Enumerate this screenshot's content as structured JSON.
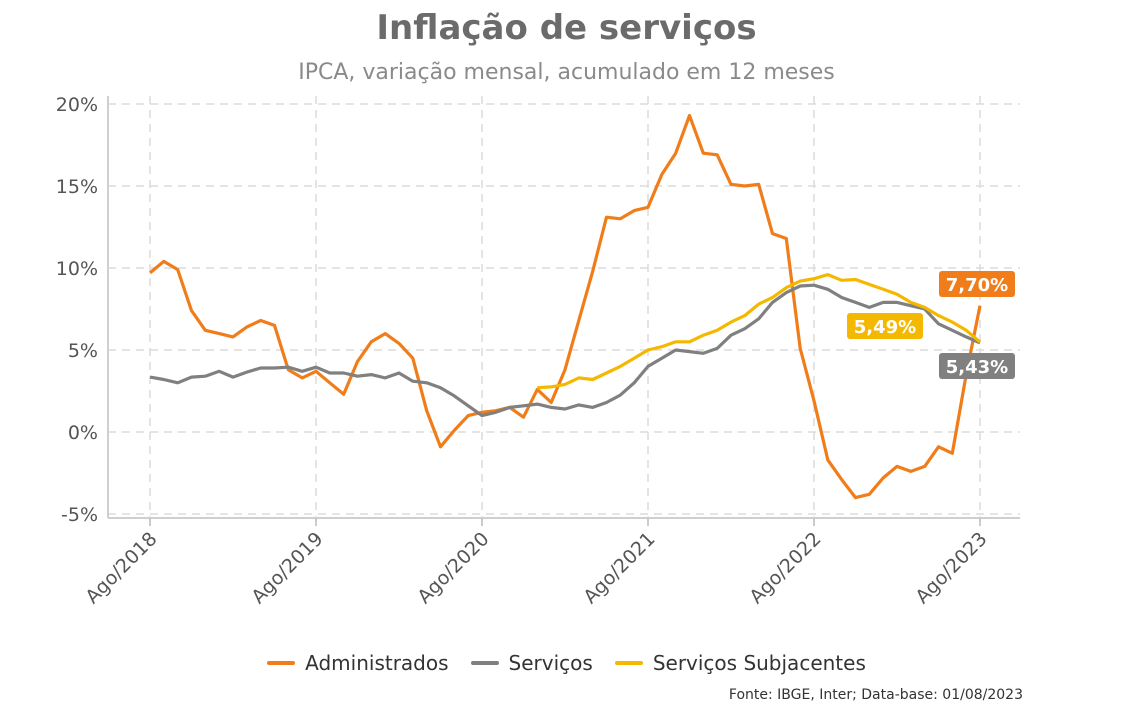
{
  "chart_data": {
    "type": "line",
    "title": "Inflação de serviços",
    "subtitle": "IPCA, variação mensal, acumulado em 12 meses",
    "xlabel": "",
    "ylabel": "",
    "x_start": "2018-08",
    "x_end": "2023-08",
    "frequency": "monthly",
    "x_ticks": [
      "Ago/2018",
      "Ago/2019",
      "Ago/2020",
      "Ago/2021",
      "Ago/2022",
      "Ago/2023"
    ],
    "y_ticks": [
      "-5%",
      "0%",
      "5%",
      "10%",
      "15%",
      "20%"
    ],
    "ylim": [
      -5,
      20
    ],
    "grid": true,
    "legend_position": "bottom",
    "series": [
      {
        "name": "Administrados",
        "color": "#F07D1A",
        "start": "2018-08",
        "end_label": "7,70%",
        "values": [
          9.7,
          10.4,
          9.9,
          7.4,
          6.2,
          6.0,
          5.8,
          6.4,
          6.8,
          6.5,
          3.8,
          3.3,
          3.7,
          3.0,
          2.3,
          4.3,
          5.5,
          6.0,
          5.4,
          4.5,
          1.3,
          -0.9,
          0.1,
          1.0,
          1.2,
          1.3,
          1.5,
          0.9,
          2.6,
          1.8,
          3.8,
          6.8,
          9.8,
          13.1,
          13.0,
          13.5,
          13.7,
          15.7,
          17.0,
          19.3,
          17.0,
          16.9,
          15.1,
          15.0,
          15.1,
          12.1,
          11.8,
          5.1,
          1.9,
          -1.7,
          -2.9,
          -4.0,
          -3.8,
          -2.8,
          -2.1,
          -2.4,
          -2.1,
          -0.9,
          -1.3,
          3.5,
          7.7
        ]
      },
      {
        "name": "Serviços",
        "color": "#808080",
        "start": "2018-08",
        "end_label": "5,43%",
        "values": [
          3.35,
          3.2,
          3.0,
          3.35,
          3.4,
          3.7,
          3.35,
          3.65,
          3.9,
          3.9,
          3.95,
          3.7,
          3.95,
          3.6,
          3.6,
          3.4,
          3.5,
          3.3,
          3.6,
          3.1,
          3.0,
          2.7,
          2.2,
          1.6,
          1.0,
          1.2,
          1.5,
          1.6,
          1.7,
          1.5,
          1.4,
          1.65,
          1.5,
          1.8,
          2.25,
          3.0,
          4.0,
          4.5,
          5.0,
          4.9,
          4.8,
          5.1,
          5.9,
          6.3,
          6.9,
          7.9,
          8.5,
          8.9,
          8.95,
          8.7,
          8.2,
          7.9,
          7.6,
          7.9,
          7.9,
          7.7,
          7.5,
          6.6,
          6.2,
          5.8,
          5.43
        ]
      },
      {
        "name": "Serviços Subjacentes",
        "color": "#F5B800",
        "start": "2020-12",
        "end_label": "5,49%",
        "values": [
          2.7,
          2.75,
          2.9,
          3.3,
          3.2,
          3.6,
          4.0,
          4.5,
          5.0,
          5.2,
          5.5,
          5.5,
          5.9,
          6.2,
          6.7,
          7.1,
          7.8,
          8.2,
          8.8,
          9.2,
          9.35,
          9.6,
          9.25,
          9.3,
          9.0,
          8.7,
          8.4,
          7.9,
          7.6,
          7.1,
          6.7,
          6.2,
          5.49
        ]
      }
    ]
  },
  "source": "Fonte: IBGE, Inter; Data-base: 01/08/2023"
}
